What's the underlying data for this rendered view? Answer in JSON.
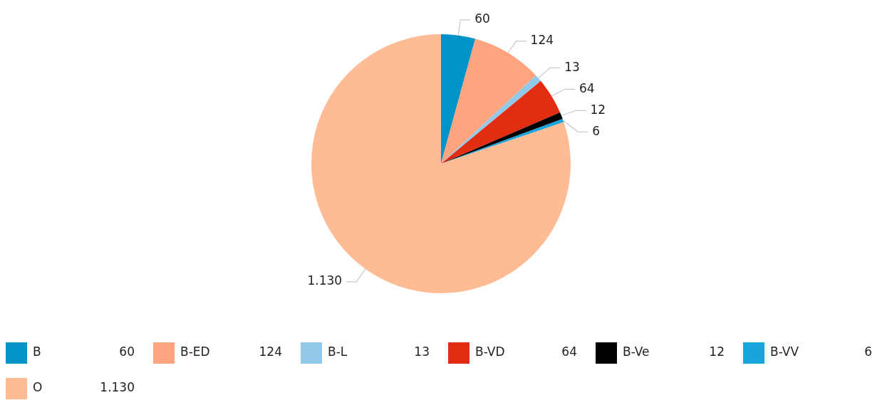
{
  "chart_data": {
    "type": "pie",
    "categories": [
      "B",
      "B-ED",
      "B-L",
      "B-VD",
      "B-Ve",
      "B-VV",
      "O"
    ],
    "values": [
      60,
      124,
      13,
      64,
      12,
      6,
      1130
    ],
    "colors": [
      "#0093c8",
      "#ffa47e",
      "#92c9e8",
      "#e32d12",
      "#000000",
      "#18a4dc",
      "#ffbb94"
    ],
    "value_labels": [
      "60",
      "124",
      "13",
      "64",
      "12",
      "6",
      "1.130"
    ],
    "legend": "bottom"
  }
}
